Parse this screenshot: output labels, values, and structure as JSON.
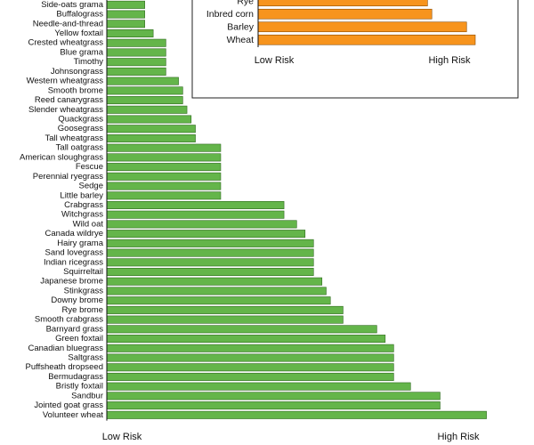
{
  "colors": {
    "main_bar": "#64b54a",
    "main_bar_stroke": "#2f6b1f",
    "inset_bar": "#f7941d",
    "inset_bar_stroke": "#8a4a00",
    "axis": "#111111"
  },
  "chart_data": [
    {
      "type": "bar",
      "orientation": "horizontal",
      "x_scale": "relative risk (0 = low, 1 = high)",
      "categories": [
        "Side-oats grama",
        "Buffalograss",
        "Needle-and-thread",
        "Yellow foxtail",
        "Crested wheatgrass",
        "Blue grama",
        "Timothy",
        "Johnsongrass",
        "Western wheatgrass",
        "Smooth brome",
        "Reed canarygrass",
        "Slender wheatgrass",
        "Quackgrass",
        "Goosegrass",
        "Tall wheatgrass",
        "Tall oatgrass",
        "American sloughgrass",
        "Fescue",
        "Perennial ryegrass",
        "Sedge",
        "Little barley",
        "Crabgrass",
        "Witchgrass",
        "Wild oat",
        "Canada wildrye",
        "Hairy grama",
        "Sand lovegrass",
        "Indian ricegrass",
        "Squirreltail",
        "Japanese brome",
        "Stinkgrass",
        "Downy brome",
        "Rye brome",
        "Smooth crabgrass",
        "Barnyard grass",
        "Green foxtail",
        "Canadian bluegrass",
        "Saltgrass",
        "Puffsheath dropseed",
        "Bermudagrass",
        "Bristly foxtail",
        "Sandbur",
        "Jointed goat grass",
        "Volunteer wheat"
      ],
      "values": [
        0.09,
        0.09,
        0.09,
        0.11,
        0.14,
        0.14,
        0.14,
        0.14,
        0.17,
        0.18,
        0.18,
        0.19,
        0.2,
        0.21,
        0.21,
        0.27,
        0.27,
        0.27,
        0.27,
        0.27,
        0.27,
        0.42,
        0.42,
        0.45,
        0.47,
        0.49,
        0.49,
        0.49,
        0.49,
        0.51,
        0.52,
        0.53,
        0.56,
        0.56,
        0.64,
        0.66,
        0.68,
        0.68,
        0.68,
        0.68,
        0.72,
        0.79,
        0.79,
        0.9
      ],
      "xlim": [
        0,
        1
      ],
      "xtick_labels": {
        "low": "Low Risk",
        "high": "High Risk"
      },
      "legend": "none",
      "grid": false
    },
    {
      "type": "bar",
      "orientation": "horizontal",
      "inset": true,
      "x_scale": "relative risk (0 = low, 1 = high)",
      "categories": [
        "Rye",
        "Inbred corn",
        "Barley",
        "Wheat"
      ],
      "values": [
        0.78,
        0.8,
        0.96,
        1.0
      ],
      "xlim": [
        0,
        1
      ],
      "xtick_labels": {
        "low": "Low Risk",
        "high": "High Risk"
      },
      "legend": "none",
      "grid": false
    }
  ]
}
